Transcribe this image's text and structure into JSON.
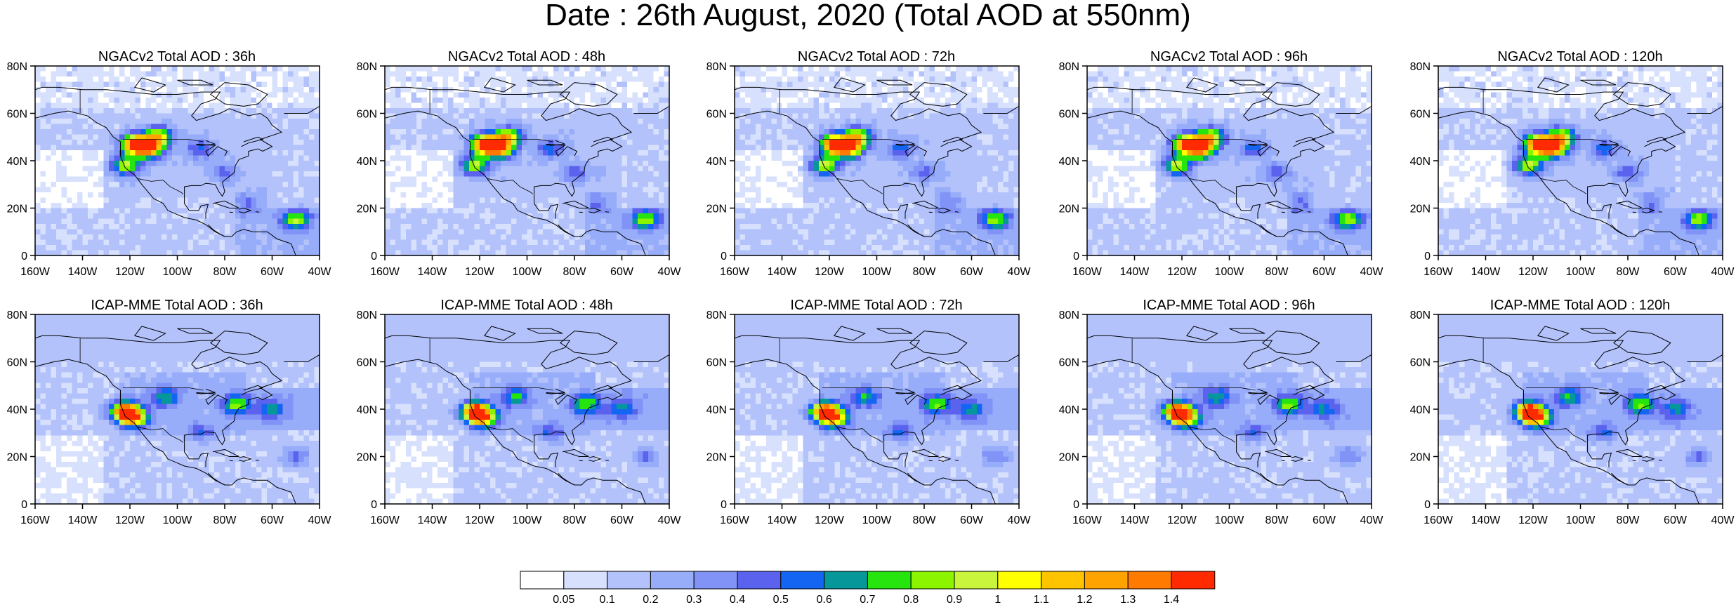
{
  "title": "Date : 26th August, 2020 (Total AOD at 550nm)",
  "colors": {
    "ocean_base": "#d8e0fc",
    "land_clear": "#ffffff",
    "coast": "#000000"
  },
  "chart_data": {
    "type": "heatmap",
    "title": "Date : 26th August, 2020 (Total AOD at 550nm)",
    "xlim": [
      -160,
      -40
    ],
    "ylim": [
      0,
      80
    ],
    "x_ticks": [
      -160,
      -140,
      -120,
      -100,
      -80,
      -60,
      -40
    ],
    "x_tick_labels": [
      "160W",
      "140W",
      "120W",
      "100W",
      "80W",
      "60W",
      "40W"
    ],
    "y_ticks": [
      0,
      20,
      40,
      60,
      80
    ],
    "y_tick_labels": [
      "0",
      "20N",
      "40N",
      "60N",
      "80N"
    ],
    "colorbar": {
      "levels": [
        "0.05",
        "0.1",
        "0.2",
        "0.3",
        "0.4",
        "0.5",
        "0.6",
        "0.7",
        "0.8",
        "0.9",
        "1",
        "1.1",
        "1.2",
        "1.3",
        "1.4"
      ],
      "colors": [
        "#ffffff",
        "#d7e0fd",
        "#b3c2fb",
        "#98adfa",
        "#8193f6",
        "#5b63ee",
        "#1466f2",
        "#06979b",
        "#26e50f",
        "#8df400",
        "#c9f53d",
        "#ffff00",
        "#ffc400",
        "#ffa300",
        "#ff7a00",
        "#ff2a00"
      ]
    },
    "panels": [
      {
        "title": "NGACv2 Total AOD : 36h",
        "model": "NGACv2",
        "lead": "36h"
      },
      {
        "title": "NGACv2 Total AOD : 48h",
        "model": "NGACv2",
        "lead": "48h"
      },
      {
        "title": "NGACv2 Total AOD : 72h",
        "model": "NGACv2",
        "lead": "72h"
      },
      {
        "title": "NGACv2 Total AOD : 96h",
        "model": "NGACv2",
        "lead": "96h"
      },
      {
        "title": "NGACv2 Total AOD : 120h",
        "model": "NGACv2",
        "lead": "120h"
      },
      {
        "title": "ICAP-MME Total AOD : 36h",
        "model": "ICAP-MME",
        "lead": "36h"
      },
      {
        "title": "ICAP-MME Total AOD : 48h",
        "model": "ICAP-MME",
        "lead": "48h"
      },
      {
        "title": "ICAP-MME Total AOD : 72h",
        "model": "ICAP-MME",
        "lead": "72h"
      },
      {
        "title": "ICAP-MME Total AOD : 96h",
        "model": "ICAP-MME",
        "lead": "96h"
      },
      {
        "title": "ICAP-MME Total AOD : 120h",
        "model": "ICAP-MME",
        "lead": "120h"
      }
    ],
    "fields": {
      "NGACv2": {
        "hotspots": [
          {
            "lon": -118,
            "lat": 47,
            "aod": 1.3
          },
          {
            "lon": -112,
            "lat": 45,
            "aod": 1.1
          },
          {
            "lon": -108,
            "lat": 50,
            "aod": 0.9
          },
          {
            "lon": -122,
            "lat": 38,
            "aod": 0.8
          },
          {
            "lon": -50,
            "lat": 15,
            "aod": 0.7
          },
          {
            "lon": -90,
            "lat": 45,
            "aod": 0.4
          },
          {
            "lon": -70,
            "lat": 22,
            "aod": 0.3
          },
          {
            "lon": -80,
            "lat": 35,
            "aod": 0.3
          }
        ]
      },
      "ICAP-MME": {
        "hotspots": [
          {
            "lon": -122,
            "lat": 39,
            "aod": 1.4
          },
          {
            "lon": -118,
            "lat": 36,
            "aod": 0.8
          },
          {
            "lon": -75,
            "lat": 42,
            "aod": 0.6
          },
          {
            "lon": -105,
            "lat": 45,
            "aod": 0.5
          },
          {
            "lon": -60,
            "lat": 40,
            "aod": 0.4
          },
          {
            "lon": -50,
            "lat": 20,
            "aod": 0.3
          },
          {
            "lon": -90,
            "lat": 30,
            "aod": 0.3
          }
        ]
      }
    }
  }
}
